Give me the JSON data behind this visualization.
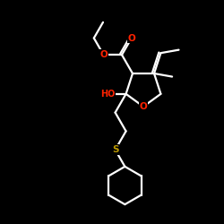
{
  "background_color": "#000000",
  "bond_color": "#ffffff",
  "atom_colors": {
    "O": "#ff2200",
    "S": "#bb9900",
    "C": "#ffffff",
    "H": "#ffffff"
  },
  "bond_width": 1.6,
  "figsize": [
    2.5,
    2.5
  ],
  "dpi": 100,
  "xlim": [
    0,
    250
  ],
  "ylim": [
    0,
    250
  ]
}
